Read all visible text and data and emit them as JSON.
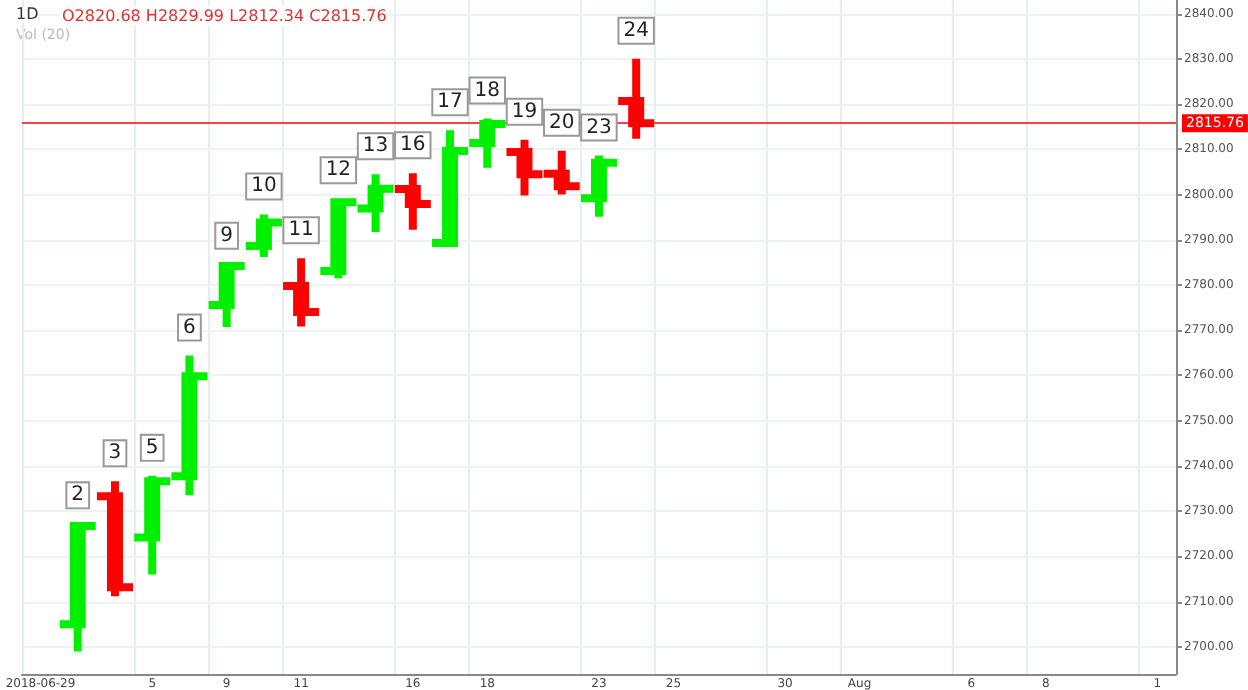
{
  "chart_data": {
    "type": "candlestick",
    "title": "1D",
    "subtitle": "O2820.68 H2829.99 L2812.34 C2815.76",
    "annotations": [
      "Vol (20)"
    ],
    "categories": [
      "2018-06-29",
      null,
      null,
      "5",
      null,
      "9",
      null,
      "11",
      null,
      null,
      "16",
      null,
      "18",
      null,
      null,
      "23",
      null,
      "25",
      null,
      null,
      "30",
      null,
      "Aug",
      null,
      null,
      "6",
      null,
      "8",
      null,
      null,
      "1"
    ],
    "ohlc": [
      null,
      [
        2705.0,
        2727.3,
        2699.0,
        2726.7
      ],
      [
        2733.3,
        2736.6,
        2711.2,
        2713.2
      ],
      [
        2724.2,
        2737.8,
        2716.0,
        2736.6
      ],
      [
        2737.7,
        2764.4,
        2733.5,
        2759.8
      ],
      [
        2775.6,
        2784.7,
        2770.7,
        2784.2
      ],
      [
        2788.6,
        2795.6,
        2786.2,
        2793.8
      ],
      [
        2779.8,
        2785.9,
        2770.8,
        2774.0
      ],
      [
        2783.1,
        2799.2,
        2781.5,
        2798.3
      ],
      [
        2796.9,
        2804.5,
        2791.7,
        2801.3
      ],
      [
        2801.2,
        2804.7,
        2792.2,
        2797.9
      ],
      [
        2789.3,
        2814.2,
        2789.2,
        2809.6
      ],
      [
        2811.4,
        2816.8,
        2805.9,
        2815.6
      ],
      [
        2809.4,
        2812.1,
        2799.8,
        2804.5
      ],
      [
        2804.6,
        2809.7,
        2800.0,
        2801.8
      ],
      [
        2799.2,
        2808.6,
        2795.1,
        2807.0
      ],
      [
        2820.68,
        2829.99,
        2812.34,
        2815.76
      ],
      null,
      null,
      null,
      null,
      null,
      null,
      null,
      null,
      null,
      null,
      null,
      null,
      null,
      null
    ],
    "value_labels": [
      null,
      "2",
      "3",
      "5",
      "6",
      "9",
      "10",
      "11",
      "12",
      "13",
      "16",
      "17",
      "18",
      "19",
      "20",
      "23",
      "24",
      null,
      null,
      null,
      null,
      null,
      null,
      null,
      null,
      null,
      null,
      null,
      null,
      null,
      null
    ],
    "colors": [
      null,
      "#00f000",
      "#ff0000",
      "#00f000",
      "#00f000",
      "#00f000",
      "#00f000",
      "#ff0000",
      "#00f000",
      "#00f000",
      "#ff0000",
      "#00f000",
      "#00f000",
      "#ff0000",
      "#ff0000",
      "#00f000",
      "#ff0000",
      null,
      null,
      null,
      null,
      null,
      null,
      null,
      null,
      null,
      null,
      null,
      null,
      null,
      null
    ],
    "ylim": [
      2694,
      2843
    ],
    "yticks": [
      {
        "value": 2700,
        "label": "2700.00"
      },
      {
        "value": 2710,
        "label": "2710.00"
      },
      {
        "value": 2720,
        "label": "2720.00"
      },
      {
        "value": 2730,
        "label": "2730.00"
      },
      {
        "value": 2740,
        "label": "2740.00"
      },
      {
        "value": 2750,
        "label": "2750.00"
      },
      {
        "value": 2760,
        "label": "2760.00"
      },
      {
        "value": 2770,
        "label": "2770.00"
      },
      {
        "value": 2780,
        "label": "2780.00"
      },
      {
        "value": 2790,
        "label": "2790.00"
      },
      {
        "value": 2800,
        "label": "2800.00"
      },
      {
        "value": 2810,
        "label": "2810.00"
      },
      {
        "value": 2820,
        "label": "2820.00"
      },
      {
        "value": 2830,
        "label": "2830.00"
      },
      {
        "value": 2840,
        "label": "2840.00"
      }
    ],
    "ref_lines": [
      {
        "axis": "y",
        "value": 2815.76,
        "label": "2815.76",
        "color": "#ff0000"
      }
    ],
    "grid": true
  }
}
